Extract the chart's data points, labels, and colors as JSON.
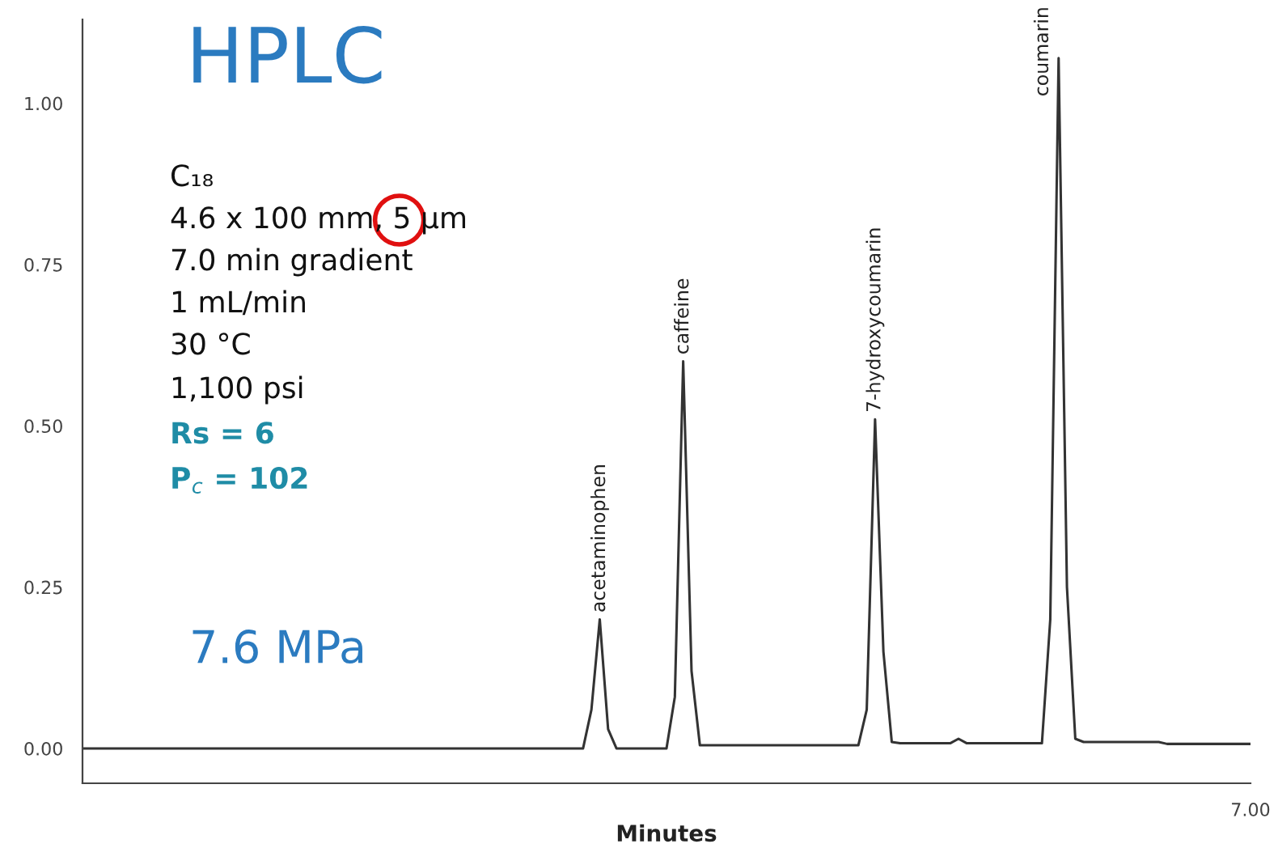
{
  "chart_data": {
    "type": "line",
    "title": "HPLC",
    "xlabel": "Minutes",
    "categories": [
      null,
      null,
      null,
      null,
      null,
      null,
      null,
      null,
      null,
      null,
      null,
      null,
      null,
      null,
      null,
      null,
      null,
      null,
      null,
      null,
      null,
      null,
      null,
      null,
      null,
      null,
      null,
      null,
      null,
      null,
      null,
      null,
      null,
      null,
      null,
      null,
      null,
      null,
      null,
      null,
      null,
      null,
      null,
      null,
      null,
      null,
      null,
      null,
      null,
      null,
      null,
      null,
      null,
      null,
      null,
      null,
      null,
      null,
      null,
      null,
      null,
      null,
      null,
      null,
      null,
      null,
      null,
      null,
      null,
      null,
      null,
      null,
      null,
      null,
      null,
      null,
      null,
      null,
      null,
      null,
      null,
      null,
      null,
      null,
      null,
      null,
      null,
      null,
      null,
      null,
      null,
      null,
      null,
      null,
      null,
      null,
      null,
      null,
      null,
      null,
      null,
      null,
      null,
      null,
      null,
      null,
      null,
      null,
      null,
      null,
      null,
      null,
      null,
      null,
      null,
      null,
      null,
      null,
      null,
      null,
      null,
      null,
      null,
      null,
      null,
      null,
      null,
      null,
      null,
      null,
      null,
      null,
      null,
      null,
      null,
      null,
      null,
      null,
      null,
      null,
      "7.00"
    ],
    "series": [
      {
        "color": "#333333",
        "values": [
          0,
          0,
          0,
          0,
          0,
          0,
          0,
          0,
          0,
          0,
          0,
          0,
          0,
          0,
          0,
          0,
          0,
          0,
          0,
          0,
          0,
          0,
          0,
          0,
          0,
          0,
          0,
          0,
          0,
          0,
          0,
          0,
          0,
          0,
          0,
          0,
          0,
          0,
          0,
          0,
          0,
          0,
          0,
          0,
          0,
          0,
          0,
          0,
          0,
          0,
          0,
          0,
          0,
          0,
          0,
          0,
          0,
          0,
          0,
          0,
          0,
          0.06,
          0.2,
          0.03,
          0,
          0,
          0,
          0,
          0,
          0,
          0,
          0.08,
          0.6,
          0.12,
          0.005,
          0.005,
          0.005,
          0.005,
          0.005,
          0.005,
          0.005,
          0.005,
          0.005,
          0.005,
          0.005,
          0.005,
          0.005,
          0.005,
          0.005,
          0.005,
          0.005,
          0.005,
          0.005,
          0.005,
          0.06,
          0.51,
          0.15,
          0.01,
          0.008,
          0.008,
          0.008,
          0.008,
          0.008,
          0.008,
          0.008,
          0.015,
          0.008,
          0.008,
          0.008,
          0.008,
          0.008,
          0.008,
          0.008,
          0.008,
          0.008,
          0.008,
          0.2,
          1.07,
          0.25,
          0.015,
          0.01,
          0.01,
          0.01,
          0.01,
          0.01,
          0.01,
          0.01,
          0.01,
          0.01,
          0.01,
          0.007,
          0.007,
          0.007,
          0.007,
          0.007,
          0.007,
          0.007,
          0.007,
          0.007,
          0.007,
          0.007
        ]
      }
    ],
    "ylim": [
      -0.054,
      1.13
    ],
    "yticks": [
      {
        "value": 0,
        "label": "0.00"
      },
      {
        "value": 0.25,
        "label": "0.25"
      },
      {
        "value": 0.5,
        "label": "0.50"
      },
      {
        "value": 0.75,
        "label": "0.75"
      },
      {
        "value": 1.0,
        "label": "1.00"
      }
    ],
    "grid": false,
    "legend": false,
    "marker": "none",
    "line_style": "solid",
    "annotations": [
      "acetaminophen",
      "caffeine",
      "7-hydroxycoumarin",
      "coumarin",
      "C₁₈",
      "4.6 x 100 mm, 5 µm",
      "7.0 min gradient",
      "1 mL/min",
      "30 °C",
      "1,100 psi",
      "Rs = 6",
      "P$_{c}$ = 102",
      "7.6 MPa"
    ]
  }
}
